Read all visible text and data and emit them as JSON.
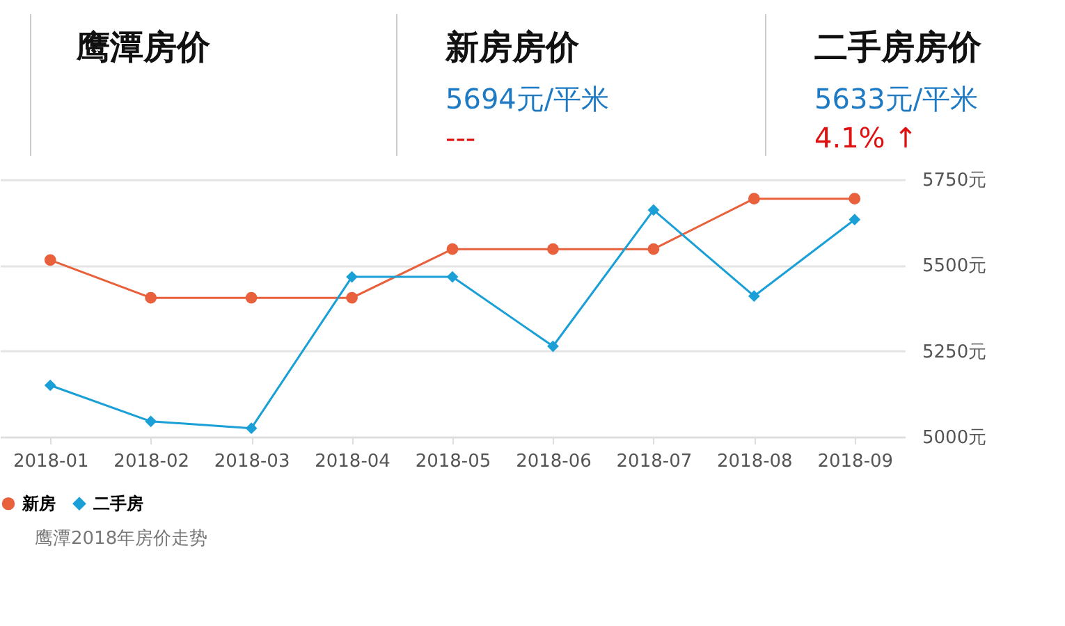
{
  "chart_data": {
    "type": "line",
    "title": "鹰潭房价",
    "annotations": [
      "新房房价",
      "5694元/平米",
      "---",
      "二手房房价",
      "5633元/平米",
      "4.1% ↑",
      "鹰潭2018年房价走势"
    ],
    "categories": [
      "2018-01",
      "2018-02",
      "2018-03",
      "2018-04",
      "2018-05",
      "2018-06",
      "2018-07",
      "2018-08",
      "2018-09"
    ],
    "series": [
      {
        "name": "新房",
        "color": "#e8603c",
        "marker": "circle",
        "values": [
          5515,
          5405,
          5405,
          5405,
          5547,
          5547,
          5547,
          5694,
          5694
        ]
      },
      {
        "name": "二手房",
        "color": "#1a9fd6",
        "marker": "diamond",
        "values": [
          5150,
          5045,
          5025,
          5466,
          5466,
          5264,
          5661,
          5410,
          5633
        ]
      }
    ],
    "ylim": [
      5000,
      5750
    ],
    "yticks": [
      {
        "value": 5000,
        "label": "5000元"
      },
      {
        "value": 5250,
        "label": "5250元"
      },
      {
        "value": 5500,
        "label": "5500元"
      },
      {
        "value": 5750,
        "label": "5750元"
      }
    ],
    "grid": "y",
    "legend": "bottom",
    "line_style": "solid"
  }
}
